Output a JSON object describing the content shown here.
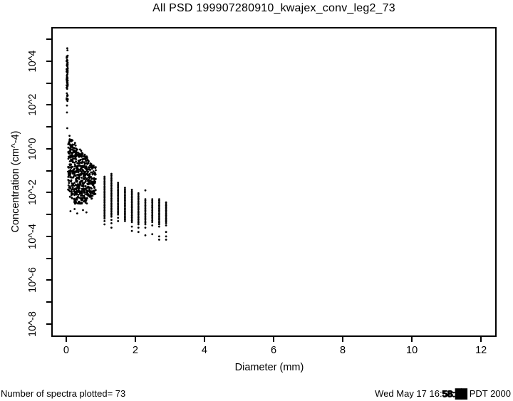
{
  "page": {
    "background": "#ffffff",
    "foreground": "#000000"
  },
  "header": {
    "title": "All PSD 199907280910_kwajex_conv_leg2_73"
  },
  "footer": {
    "left": "Number of spectra plotted= 73",
    "right_prefix": "Wed May 17 16:",
    "right_minutes_overprint": "58:",
    "right_seconds_overprint": "██",
    "right_suffix": " PDT 2000"
  },
  "chart_data": {
    "type": "scatter",
    "title": "All PSD 199907280910_kwajex_conv_leg2_73",
    "xlabel": "Diameter (mm)",
    "ylabel": "Concentration (cm^-4)",
    "x_ticks": [
      0,
      2,
      4,
      6,
      8,
      10,
      12
    ],
    "xlim": [
      -0.43,
      12.45
    ],
    "y_scale": "log10",
    "ylim_log10": [
      -8.59,
      5.56
    ],
    "y_tick_exponents_all": [
      -8,
      -7,
      -6,
      -5,
      -4,
      -3,
      -2,
      -1,
      0,
      1,
      2,
      3,
      4,
      5
    ],
    "y_labeled_ticks": [
      {
        "exponent": -8,
        "label": "10^-8"
      },
      {
        "exponent": -6,
        "label": "10^-6"
      },
      {
        "exponent": -4,
        "label": "10^-4"
      },
      {
        "exponent": -2,
        "label": "10^-2"
      },
      {
        "exponent": 0,
        "label": "10^0"
      },
      {
        "exponent": 2,
        "label": "10^2"
      },
      {
        "exponent": 4,
        "label": "10^4"
      }
    ],
    "grid": false,
    "legend": null,
    "marker": {
      "shape": "filled-circle",
      "color": "#000000",
      "radius_px": 1.4
    },
    "point_groups": [
      {
        "kind": "column",
        "d": 0.03,
        "jitter": 0.018,
        "mode": "random",
        "segments": [
          {
            "lo": 2.73,
            "hi": 4.26,
            "n": 60
          },
          {
            "lo": 2.18,
            "hi": 2.57,
            "n": 9
          }
        ],
        "dots": [
          4.59,
          4.5,
          1.98,
          1.66,
          0.94
        ]
      },
      {
        "kind": "blob",
        "d": 0.08,
        "jitter": 0.028,
        "mode": "random",
        "segments": [
          {
            "lo": -2.0,
            "hi": 0.62,
            "n": 46
          }
        ]
      },
      {
        "kind": "blob",
        "d": 0.13,
        "jitter": 0.028,
        "mode": "random",
        "segments": [
          {
            "lo": -2.2,
            "hi": 0.5,
            "n": 46
          }
        ],
        "dots": [
          -2.85
        ]
      },
      {
        "kind": "blob",
        "d": 0.18,
        "jitter": 0.028,
        "mode": "random",
        "segments": [
          {
            "lo": -2.35,
            "hi": 0.41,
            "n": 46
          }
        ]
      },
      {
        "kind": "blob",
        "d": 0.23,
        "jitter": 0.028,
        "mode": "random",
        "segments": [
          {
            "lo": -2.45,
            "hi": 0.31,
            "n": 46
          }
        ],
        "dots": [
          -2.75
        ]
      },
      {
        "kind": "blob",
        "d": 0.28,
        "jitter": 0.028,
        "mode": "random",
        "segments": [
          {
            "lo": -2.5,
            "hi": 0.22,
            "n": 46
          }
        ]
      },
      {
        "kind": "blob",
        "d": 0.33,
        "jitter": 0.028,
        "mode": "random",
        "segments": [
          {
            "lo": -2.55,
            "hi": 0.12,
            "n": 46
          }
        ],
        "dots": [
          -2.95
        ]
      },
      {
        "kind": "blob",
        "d": 0.38,
        "jitter": 0.028,
        "mode": "random",
        "segments": [
          {
            "lo": -2.55,
            "hi": 0.03,
            "n": 44
          }
        ]
      },
      {
        "kind": "blob",
        "d": 0.43,
        "jitter": 0.028,
        "mode": "random",
        "segments": [
          {
            "lo": -2.5,
            "hi": -0.07,
            "n": 42
          }
        ]
      },
      {
        "kind": "blob",
        "d": 0.48,
        "jitter": 0.028,
        "mode": "random",
        "segments": [
          {
            "lo": -2.55,
            "hi": -0.16,
            "n": 40
          }
        ],
        "dots": [
          -2.8
        ]
      },
      {
        "kind": "blob",
        "d": 0.53,
        "jitter": 0.028,
        "mode": "random",
        "segments": [
          {
            "lo": -2.45,
            "hi": -0.26,
            "n": 38
          }
        ]
      },
      {
        "kind": "blob",
        "d": 0.58,
        "jitter": 0.028,
        "mode": "random",
        "segments": [
          {
            "lo": -2.5,
            "hi": -0.35,
            "n": 36
          }
        ],
        "dots": [
          -2.9
        ]
      },
      {
        "kind": "blob",
        "d": 0.63,
        "jitter": 0.028,
        "mode": "random",
        "segments": [
          {
            "lo": -2.4,
            "hi": -0.45,
            "n": 34
          }
        ]
      },
      {
        "kind": "blob",
        "d": 0.68,
        "jitter": 0.028,
        "mode": "random",
        "segments": [
          {
            "lo": -2.35,
            "hi": -0.54,
            "n": 32
          }
        ]
      },
      {
        "kind": "blob",
        "d": 0.73,
        "jitter": 0.028,
        "mode": "random",
        "segments": [
          {
            "lo": -2.3,
            "hi": -0.64,
            "n": 30
          }
        ]
      },
      {
        "kind": "blob",
        "d": 0.78,
        "jitter": 0.028,
        "mode": "random",
        "segments": [
          {
            "lo": -2.2,
            "hi": -0.73,
            "n": 28
          }
        ]
      },
      {
        "kind": "blob",
        "d": 0.83,
        "jitter": 0.028,
        "mode": "random",
        "segments": [
          {
            "lo": -2.1,
            "hi": -0.83,
            "n": 26
          }
        ]
      },
      {
        "kind": "column",
        "d": 1.11,
        "jitter": 0,
        "mode": "even",
        "segments": [
          {
            "lo": -3.19,
            "hi": -1.27,
            "n": 27
          }
        ],
        "dots": [
          -3.3,
          -3.45
        ]
      },
      {
        "kind": "column",
        "d": 1.31,
        "jitter": 0,
        "mode": "even",
        "segments": [
          {
            "lo": -3.02,
            "hi": -1.14,
            "n": 26
          }
        ],
        "dots": [
          -3.1,
          -3.25,
          -3.4,
          -3.6
        ]
      },
      {
        "kind": "column",
        "d": 1.5,
        "jitter": 0,
        "mode": "even",
        "segments": [
          {
            "lo": -3.0,
            "hi": -1.55,
            "n": 21
          }
        ],
        "dots": [
          -3.15,
          -3.3
        ]
      },
      {
        "kind": "column",
        "d": 1.7,
        "jitter": 0,
        "mode": "even",
        "segments": [
          {
            "lo": -3.3,
            "hi": -1.78,
            "n": 22
          }
        ]
      },
      {
        "kind": "column",
        "d": 1.9,
        "jitter": 0,
        "mode": "even",
        "segments": [
          {
            "lo": -3.35,
            "hi": -1.87,
            "n": 21
          }
        ],
        "dots": [
          -3.55,
          -3.75
        ]
      },
      {
        "kind": "column",
        "d": 2.09,
        "jitter": 0,
        "mode": "even",
        "segments": [
          {
            "lo": -3.45,
            "hi": -2.03,
            "n": 20
          }
        ],
        "dots": [
          -3.6,
          -3.8
        ]
      },
      {
        "kind": "column",
        "d": 2.29,
        "jitter": 0,
        "mode": "even",
        "segments": [
          {
            "lo": -3.45,
            "hi": -2.3,
            "n": 17
          }
        ],
        "dots": [
          -1.9,
          -3.6,
          -3.95
        ]
      },
      {
        "kind": "column",
        "d": 2.49,
        "jitter": 0,
        "mode": "even",
        "segments": [
          {
            "lo": -3.35,
            "hi": -2.3,
            "n": 15
          }
        ],
        "dots": [
          -3.5,
          -3.9
        ]
      },
      {
        "kind": "column",
        "d": 2.69,
        "jitter": 0,
        "mode": "even",
        "segments": [
          {
            "lo": -3.45,
            "hi": -2.3,
            "n": 17
          }
        ],
        "dots": [
          -3.55,
          -4.0,
          -4.15
        ]
      },
      {
        "kind": "column",
        "d": 2.89,
        "jitter": 0,
        "mode": "even",
        "segments": [
          {
            "lo": -3.4,
            "hi": -2.45,
            "n": 14
          }
        ],
        "dots": [
          -3.5,
          -3.8,
          -4.0,
          -4.15
        ]
      }
    ]
  }
}
